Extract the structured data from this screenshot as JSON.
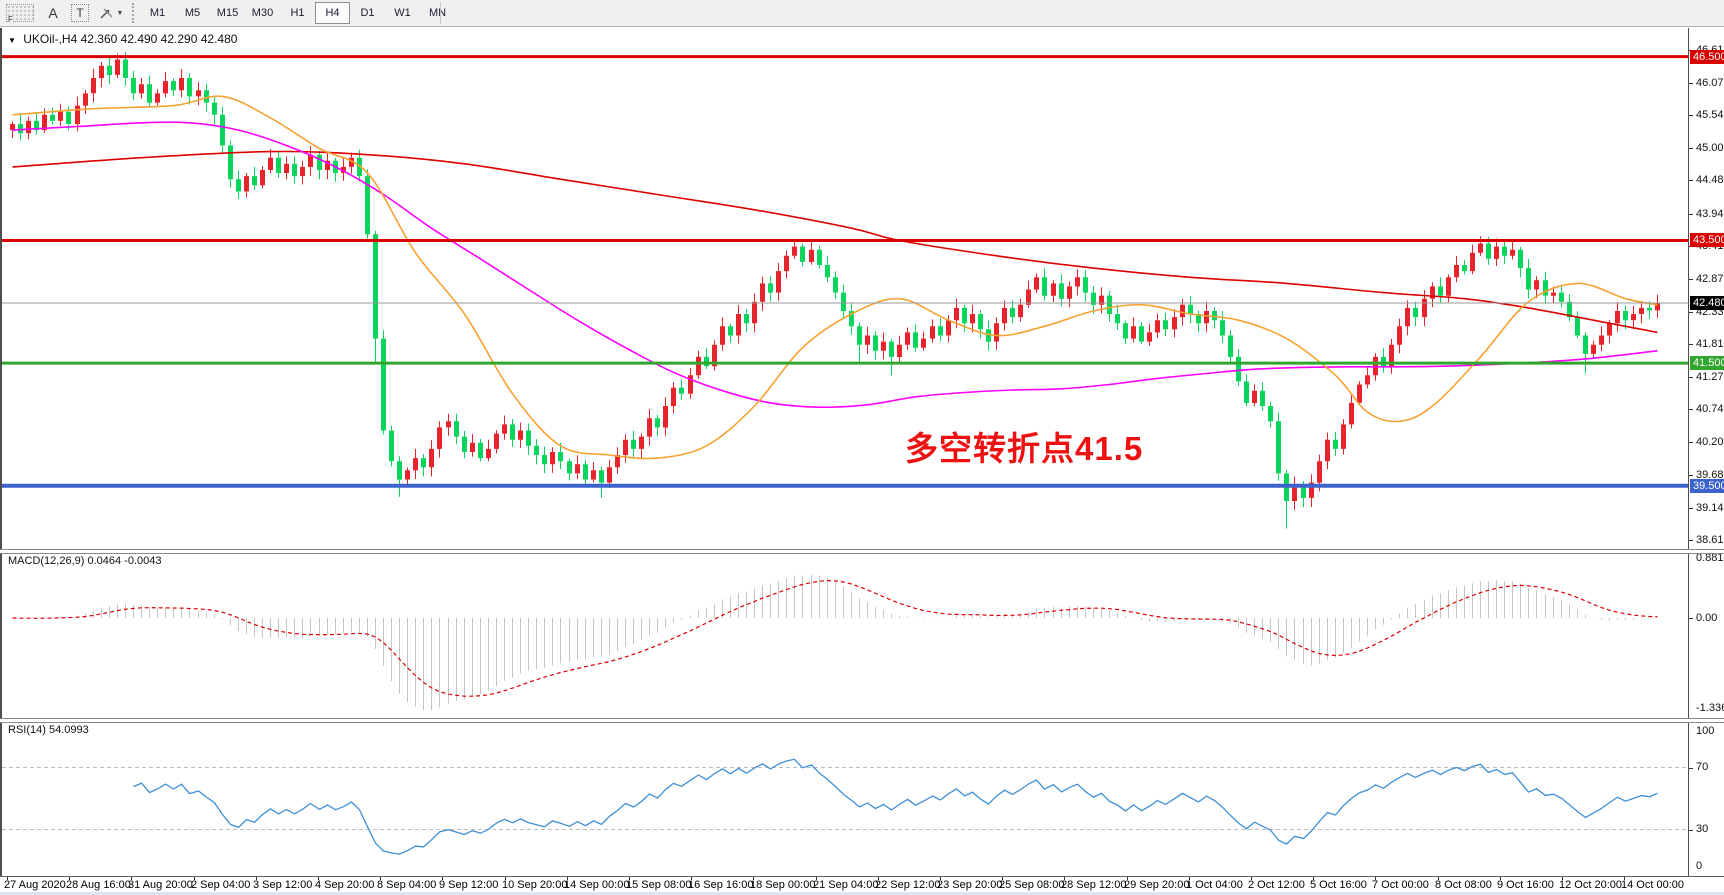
{
  "toolbar": {
    "dock_label": "F",
    "font_tool_label": "A",
    "text_tool_label": "T",
    "dropdown_caret": "▼",
    "timeframes": [
      "M1",
      "M5",
      "M15",
      "M30",
      "H1",
      "H4",
      "D1",
      "W1",
      "MN"
    ],
    "active_timeframe": "H4"
  },
  "chart": {
    "symbol_caret": "▼",
    "symbol_line": "UKOil-,H4 42.360 42.490 42.290 42.480",
    "annotation": "多空转折点41.5",
    "y_ticks": [
      46.61,
      46.07,
      45.545,
      45.005,
      44.48,
      43.94,
      43.415,
      42.875,
      42.335,
      41.81,
      41.27,
      40.745,
      40.205,
      39.68,
      39.14,
      38.615
    ],
    "levels": [
      {
        "price": 46.5,
        "label": "46.500",
        "color": "#da0000",
        "width": 3
      },
      {
        "price": 43.5,
        "label": "43.500",
        "color": "#da0000",
        "width": 3
      },
      {
        "price": 41.5,
        "label": "41.500",
        "color": "#31a62e",
        "width": 3
      },
      {
        "price": 39.5,
        "label": "39.500",
        "color": "#3c63cd",
        "width": 4
      }
    ],
    "current_price": {
      "price": 42.48,
      "label": "42.480",
      "line_color": "#9a9a9a",
      "badge_bg": "#000000"
    }
  },
  "macd": {
    "label": "MACD(12,26,9) 0.0464 -0.0043",
    "fast": 12,
    "slow": 26,
    "signal_period": 9,
    "value": "0.0464",
    "signal_value": "-0.0043",
    "scale_top": "0.8812",
    "scale_zero": "0.00",
    "scale_bottom": "-1.3368"
  },
  "rsi": {
    "label": "RSI(14) 54.0993",
    "period": 14,
    "value": "54.0993",
    "scale": [
      "100",
      "70",
      "30",
      "0"
    ],
    "upper_level": 70,
    "lower_level": 30
  },
  "dates": [
    "27 Aug 2020",
    "28 Aug 16:00",
    "31 Aug 20:00",
    "2 Sep 04:00",
    "3 Sep 12:00",
    "4 Sep 20:00",
    "8 Sep 04:00",
    "9 Sep 12:00",
    "10 Sep 20:00",
    "14 Sep 00:00",
    "15 Sep 08:00",
    "16 Sep 16:00",
    "18 Sep 00:00",
    "21 Sep 04:00",
    "22 Sep 12:00",
    "23 Sep 20:00",
    "25 Sep 08:00",
    "28 Sep 12:00",
    "29 Sep 20:00",
    "1 Oct 04:00",
    "2 Oct 12:00",
    "5 Oct 16:00",
    "7 Oct 00:00",
    "8 Oct 08:00",
    "9 Oct 16:00",
    "12 Oct 20:00",
    "14 Oct 00:00"
  ],
  "colors": {
    "candle_up": "#e7242b",
    "candle_down": "#09d45c",
    "ma_red": "#df0000",
    "ma_magenta": "#ff00ff",
    "ma_orange": "#f7a232",
    "macd_hist": "#c5c5c5",
    "macd_signal": "#dd0000",
    "rsi_line": "#3e8fd6",
    "dashed_level": "#bdbdbd",
    "annotation": "#ee1111"
  },
  "chart_data": {
    "type": "candlestick",
    "symbol": "UKOil-",
    "timeframe": "H4",
    "ohlc_current": {
      "open": 42.36,
      "high": 42.49,
      "low": 42.29,
      "close": 42.48
    },
    "first_open": 45.3,
    "closes": [
      45.4,
      45.25,
      45.45,
      45.3,
      45.55,
      45.45,
      45.6,
      45.4,
      45.7,
      45.9,
      46.15,
      46.35,
      46.2,
      46.45,
      46.15,
      45.9,
      46.05,
      45.75,
      45.9,
      46.1,
      45.95,
      46.15,
      45.85,
      45.95,
      45.75,
      45.55,
      45.05,
      44.5,
      44.3,
      44.55,
      44.4,
      44.65,
      44.85,
      44.6,
      44.75,
      44.55,
      44.7,
      44.9,
      44.65,
      44.8,
      44.6,
      44.7,
      44.85,
      44.55,
      43.6,
      41.9,
      40.4,
      39.9,
      39.6,
      39.75,
      39.95,
      39.8,
      40.1,
      40.45,
      40.55,
      40.3,
      40.05,
      40.2,
      39.95,
      40.1,
      40.35,
      40.5,
      40.25,
      40.4,
      40.15,
      40.0,
      39.85,
      40.05,
      39.9,
      39.7,
      39.85,
      39.6,
      39.75,
      39.55,
      39.8,
      40.0,
      40.25,
      40.1,
      40.3,
      40.6,
      40.45,
      40.8,
      41.1,
      41.0,
      41.3,
      41.6,
      41.45,
      41.8,
      42.1,
      41.95,
      42.3,
      42.15,
      42.5,
      42.8,
      42.65,
      43.0,
      43.25,
      43.4,
      43.15,
      43.35,
      43.1,
      42.9,
      42.65,
      42.35,
      42.1,
      41.8,
      41.95,
      41.7,
      41.85,
      41.6,
      41.8,
      42.0,
      41.75,
      41.9,
      42.1,
      41.95,
      42.2,
      42.4,
      42.15,
      42.3,
      42.05,
      41.85,
      42.15,
      42.4,
      42.25,
      42.45,
      42.7,
      42.9,
      42.6,
      42.8,
      42.55,
      42.75,
      42.9,
      42.65,
      42.45,
      42.6,
      42.3,
      42.15,
      41.9,
      42.1,
      41.85,
      42.0,
      42.2,
      42.05,
      42.25,
      42.45,
      42.3,
      42.15,
      42.35,
      42.2,
      41.95,
      41.6,
      41.2,
      40.85,
      41.05,
      40.8,
      40.55,
      39.7,
      39.25,
      39.5,
      39.3,
      39.55,
      39.9,
      40.25,
      40.1,
      40.5,
      40.85,
      41.15,
      41.3,
      41.6,
      41.45,
      41.8,
      42.1,
      42.4,
      42.25,
      42.55,
      42.75,
      42.6,
      42.9,
      43.1,
      43.0,
      43.3,
      43.45,
      43.2,
      43.4,
      43.25,
      43.35,
      43.05,
      42.7,
      42.85,
      42.6,
      42.65,
      42.5,
      42.25,
      41.95,
      41.65,
      41.8,
      41.95,
      42.15,
      42.35,
      42.2,
      42.3,
      42.4,
      42.36,
      42.48
    ],
    "wick_overrides": {
      "13": [
        0.1,
        0.05
      ],
      "45": [
        0.06,
        0.4
      ],
      "48": [
        0.08,
        0.28
      ],
      "73": [
        0.06,
        0.25
      ],
      "97": [
        0.12,
        0.05
      ],
      "105": [
        0.06,
        0.28
      ],
      "109": [
        0.05,
        0.3
      ],
      "158": [
        0.06,
        0.45
      ],
      "182": [
        0.12,
        0.05
      ],
      "186": [
        0.15,
        0.06
      ],
      "195": [
        0.05,
        0.32
      ]
    },
    "ma": {
      "red": [
        [
          0,
          44.7
        ],
        [
          16,
          44.85
        ],
        [
          32,
          44.95
        ],
        [
          44,
          44.9
        ],
        [
          56,
          44.75
        ],
        [
          68,
          44.5
        ],
        [
          80,
          44.25
        ],
        [
          92,
          44.0
        ],
        [
          104,
          43.7
        ],
        [
          110,
          43.5
        ],
        [
          122,
          43.25
        ],
        [
          134,
          43.05
        ],
        [
          146,
          42.9
        ],
        [
          158,
          42.8
        ],
        [
          170,
          42.65
        ],
        [
          180,
          42.55
        ],
        [
          188,
          42.4
        ],
        [
          196,
          42.2
        ],
        [
          204,
          42.0
        ]
      ],
      "magenta": [
        [
          0,
          45.3
        ],
        [
          8,
          45.36
        ],
        [
          16,
          45.42
        ],
        [
          22,
          45.42
        ],
        [
          28,
          45.3
        ],
        [
          34,
          45.05
        ],
        [
          40,
          44.7
        ],
        [
          46,
          44.25
        ],
        [
          52,
          43.7
        ],
        [
          58,
          43.2
        ],
        [
          64,
          42.7
        ],
        [
          70,
          42.2
        ],
        [
          76,
          41.75
        ],
        [
          82,
          41.35
        ],
        [
          88,
          41.05
        ],
        [
          94,
          40.85
        ],
        [
          100,
          40.78
        ],
        [
          106,
          40.82
        ],
        [
          112,
          40.95
        ],
        [
          118,
          41.02
        ],
        [
          124,
          41.06
        ],
        [
          130,
          41.08
        ],
        [
          136,
          41.15
        ],
        [
          142,
          41.25
        ],
        [
          148,
          41.33
        ],
        [
          154,
          41.4
        ],
        [
          160,
          41.43
        ],
        [
          166,
          41.44
        ],
        [
          172,
          41.44
        ],
        [
          178,
          41.45
        ],
        [
          184,
          41.48
        ],
        [
          190,
          41.52
        ],
        [
          196,
          41.58
        ],
        [
          204,
          41.7
        ]
      ],
      "orange": [
        [
          0,
          45.55
        ],
        [
          10,
          45.65
        ],
        [
          20,
          45.7
        ],
        [
          26,
          45.85
        ],
        [
          32,
          45.5
        ],
        [
          38,
          45.0
        ],
        [
          44,
          44.6
        ],
        [
          50,
          43.3
        ],
        [
          56,
          42.3
        ],
        [
          62,
          41.0
        ],
        [
          68,
          40.15
        ],
        [
          74,
          40.0
        ],
        [
          80,
          39.95
        ],
        [
          86,
          40.15
        ],
        [
          92,
          40.8
        ],
        [
          98,
          41.75
        ],
        [
          104,
          42.3
        ],
        [
          110,
          42.55
        ],
        [
          116,
          42.2
        ],
        [
          122,
          41.95
        ],
        [
          128,
          42.1
        ],
        [
          134,
          42.35
        ],
        [
          140,
          42.45
        ],
        [
          146,
          42.3
        ],
        [
          152,
          42.2
        ],
        [
          158,
          41.9
        ],
        [
          164,
          41.3
        ],
        [
          168,
          40.7
        ],
        [
          172,
          40.55
        ],
        [
          176,
          40.8
        ],
        [
          182,
          41.6
        ],
        [
          188,
          42.5
        ],
        [
          194,
          42.8
        ],
        [
          200,
          42.55
        ],
        [
          204,
          42.45
        ]
      ]
    }
  }
}
